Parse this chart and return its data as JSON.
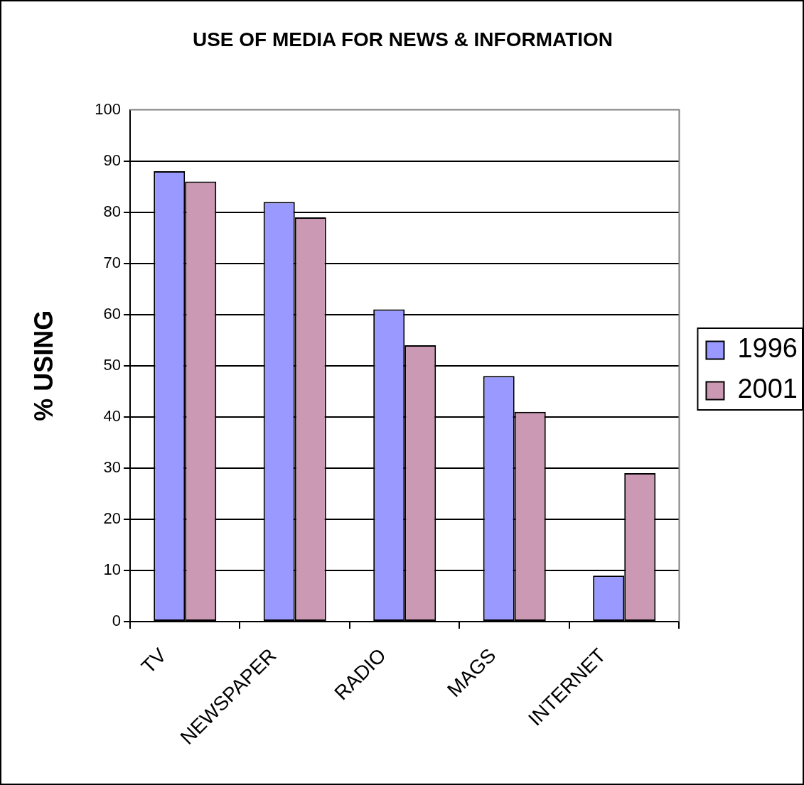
{
  "chart_data": {
    "type": "bar",
    "title": "USE OF MEDIA FOR NEWS & INFORMATION",
    "ylabel": "% USING",
    "categories": [
      "TV",
      "NEWSPAPER",
      "RADIO",
      "MAGS",
      "INTERNET"
    ],
    "series": [
      {
        "name": "1996",
        "color": "#9999ff",
        "values": [
          88,
          82,
          61,
          48,
          9
        ]
      },
      {
        "name": "2001",
        "color": "#cc99b4",
        "values": [
          86,
          79,
          54,
          41,
          29
        ]
      }
    ],
    "ylim": [
      0,
      100
    ],
    "yticks": [
      0,
      10,
      20,
      30,
      40,
      50,
      60,
      70,
      80,
      90,
      100
    ],
    "grid": "y",
    "legend": "right"
  }
}
